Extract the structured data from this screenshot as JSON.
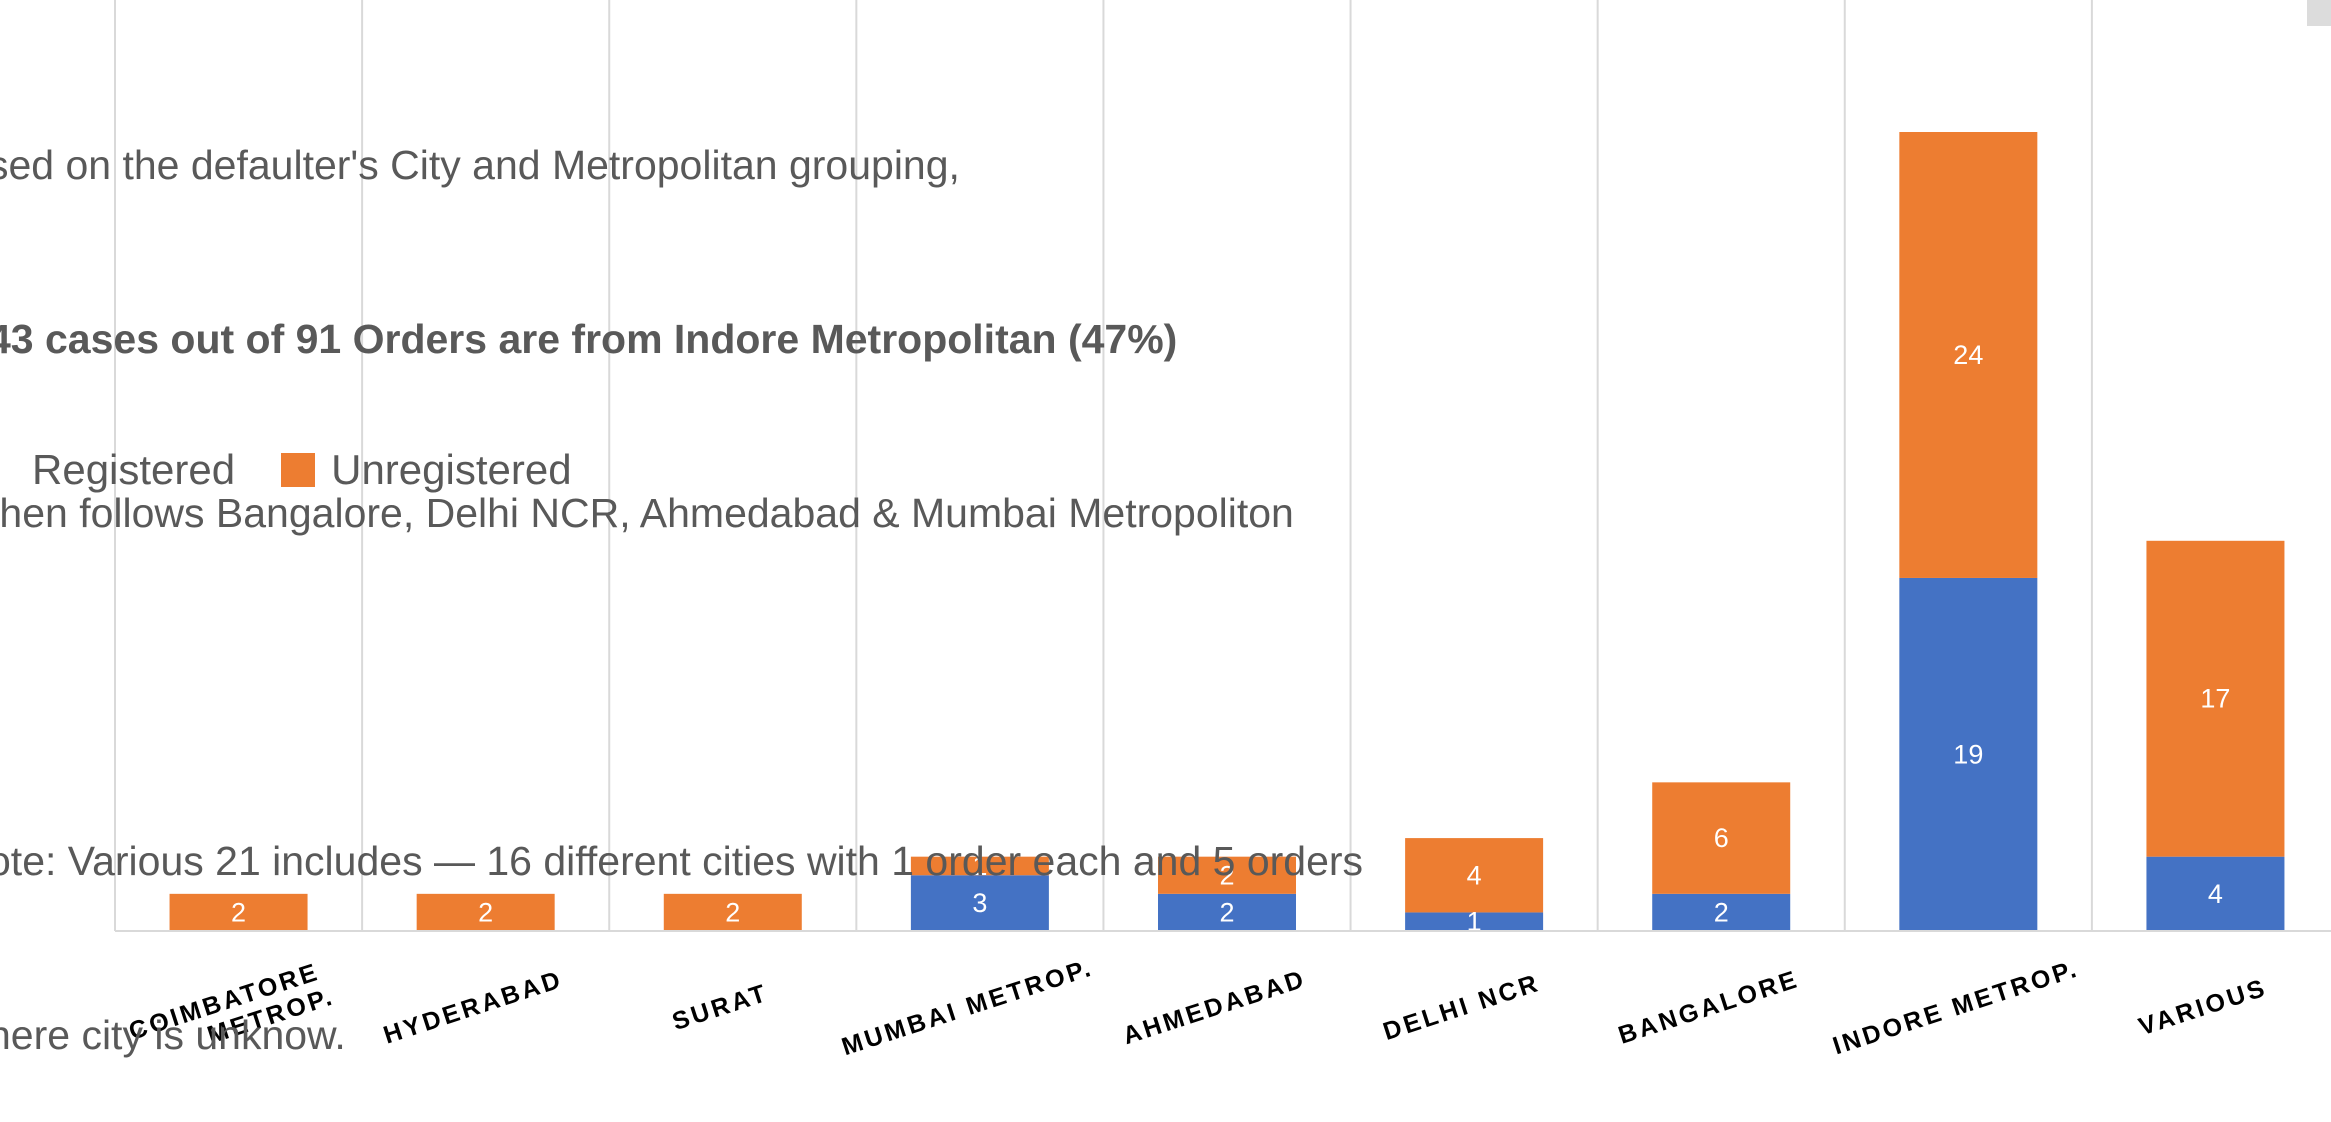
{
  "notes": {
    "line1": "sed on the defaulter's City and Metropolitan grouping,",
    "line2": "43 cases out of 91 Orders are from Indore Metropolitan (47%)",
    "line3": "then follows Bangalore, Delhi NCR, Ahmedabad & Mumbai Metropoliton",
    "line4": "",
    "line5": "ote: Various 21 includes — 16 different cities with 1 order each and 5 orders",
    "line6": "here city is unknow."
  },
  "legend": {
    "registered_label": "Registered",
    "unregistered_label": "Unregistered"
  },
  "colors": {
    "registered": "#4472C4",
    "unregistered": "#ED7D31",
    "gridline": "#d9d9d9",
    "axis_label": "#000000"
  },
  "chart_data": {
    "type": "bar",
    "stacked": true,
    "categories": [
      "COIMBATORE METROP.",
      "HYDERABAD",
      "SURAT",
      "MUMBAI METROP.",
      "AHMEDABAD",
      "DELHI NCR",
      "BANGALORE",
      "INDORE METROP.",
      "VARIOUS"
    ],
    "series": [
      {
        "name": "Registered",
        "values": [
          0,
          0,
          0,
          3,
          2,
          1,
          2,
          19,
          4
        ]
      },
      {
        "name": "Unregistered",
        "values": [
          2,
          2,
          2,
          1,
          2,
          4,
          6,
          24,
          17
        ]
      }
    ],
    "ylim": [
      0,
      43
    ],
    "grid": "vertical",
    "legend_position": "top-left"
  }
}
